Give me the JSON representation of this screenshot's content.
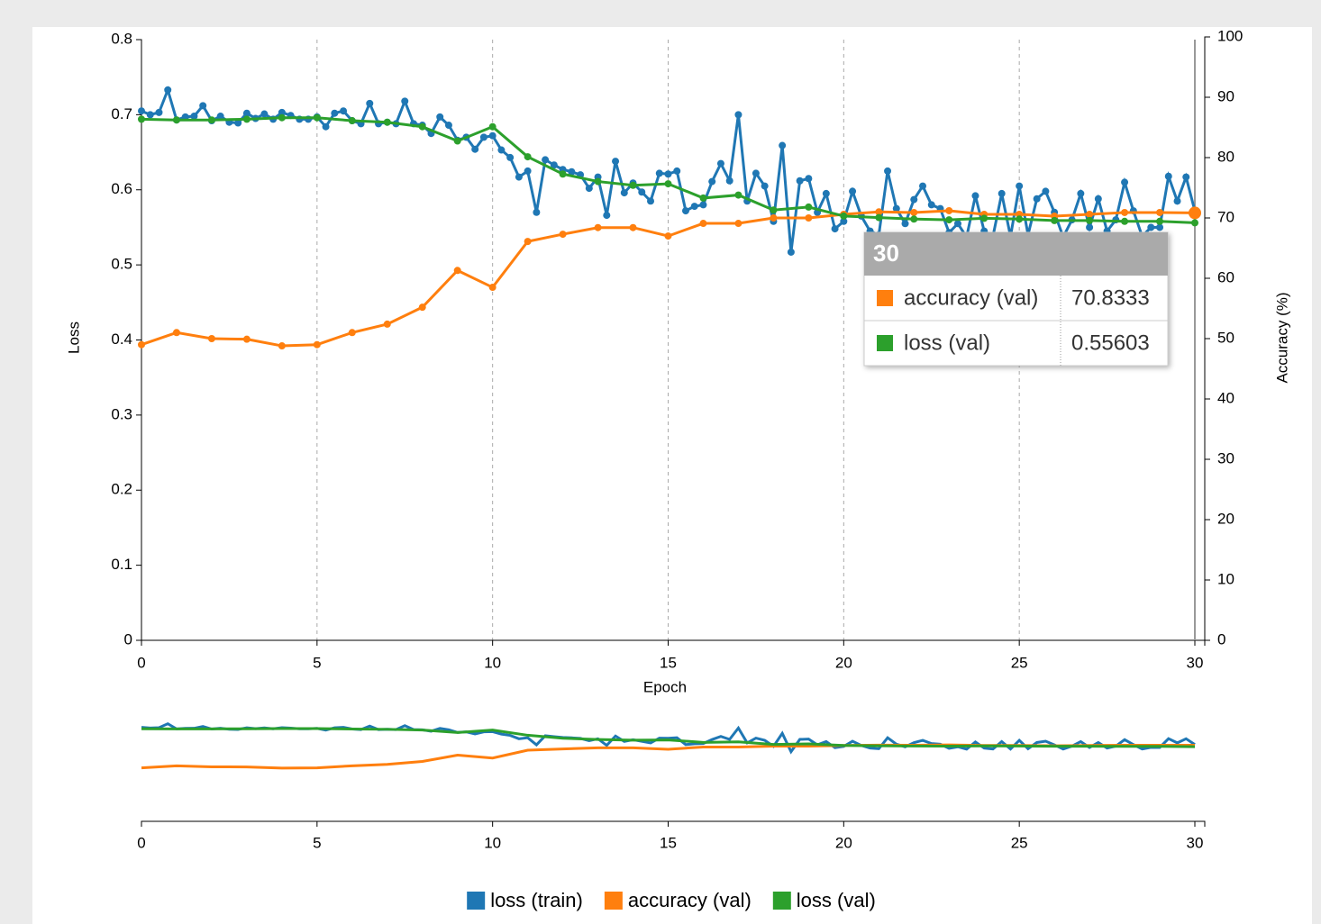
{
  "chart_data": {
    "type": "line",
    "xlabel": "Epoch",
    "ylabel": "Loss",
    "y2label": "Accuracy (%)",
    "xlim": [
      0,
      30
    ],
    "xticks": [
      0,
      5,
      10,
      15,
      20,
      25,
      30
    ],
    "ylim": [
      0,
      0.8
    ],
    "yticks": [
      0,
      0.1,
      0.2,
      0.3,
      0.4,
      0.5,
      0.6,
      0.7,
      0.8
    ],
    "y2lim": [
      0,
      100
    ],
    "y2ticks": [
      0,
      10,
      20,
      30,
      40,
      50,
      60,
      70,
      80,
      90,
      100
    ],
    "xgrid": true,
    "legend": "bottom",
    "series": [
      {
        "name": "loss (train)",
        "color": "#1f77b4",
        "axis": "y",
        "x": [
          0,
          0.25,
          0.5,
          0.75,
          1,
          1.25,
          1.5,
          1.75,
          2,
          2.25,
          2.5,
          2.75,
          3,
          3.25,
          3.5,
          3.75,
          4,
          4.25,
          4.5,
          4.75,
          5,
          5.25,
          5.5,
          5.75,
          6,
          6.25,
          6.5,
          6.75,
          7,
          7.25,
          7.5,
          7.75,
          8,
          8.25,
          8.5,
          8.75,
          9,
          9.25,
          9.5,
          9.75,
          10,
          10.25,
          10.5,
          10.75,
          11,
          11.25,
          11.5,
          11.75,
          12,
          12.25,
          12.5,
          12.75,
          13,
          13.25,
          13.5,
          13.75,
          14,
          14.25,
          14.5,
          14.75,
          15,
          15.25,
          15.5,
          15.75,
          16,
          16.25,
          16.5,
          16.75,
          17,
          17.25,
          17.5,
          17.75,
          18,
          18.25,
          18.5,
          18.75,
          19,
          19.25,
          19.5,
          19.75,
          20,
          20.25,
          20.5,
          20.75,
          21,
          21.25,
          21.5,
          21.75,
          22,
          22.25,
          22.5,
          22.75,
          23,
          23.25,
          23.5,
          23.75,
          24,
          24.25,
          24.5,
          24.75,
          25,
          25.25,
          25.5,
          25.75,
          26,
          26.25,
          26.5,
          26.75,
          27,
          27.25,
          27.5,
          27.75,
          28,
          28.25,
          28.5,
          28.75,
          29,
          29.25,
          29.5,
          29.75,
          30
        ],
        "values": [
          0.705,
          0.7,
          0.703,
          0.733,
          0.693,
          0.697,
          0.698,
          0.712,
          0.692,
          0.698,
          0.69,
          0.689,
          0.702,
          0.695,
          0.701,
          0.694,
          0.703,
          0.699,
          0.694,
          0.694,
          0.697,
          0.684,
          0.702,
          0.705,
          0.692,
          0.688,
          0.715,
          0.688,
          0.69,
          0.688,
          0.718,
          0.688,
          0.686,
          0.675,
          0.697,
          0.686,
          0.666,
          0.67,
          0.654,
          0.67,
          0.672,
          0.653,
          0.643,
          0.617,
          0.625,
          0.57,
          0.64,
          0.633,
          0.627,
          0.624,
          0.62,
          0.602,
          0.617,
          0.566,
          0.638,
          0.596,
          0.609,
          0.597,
          0.585,
          0.622,
          0.621,
          0.625,
          0.572,
          0.578,
          0.58,
          0.611,
          0.635,
          0.612,
          0.7,
          0.585,
          0.622,
          0.605,
          0.558,
          0.659,
          0.517,
          0.612,
          0.615,
          0.57,
          0.595,
          0.548,
          0.558,
          0.598,
          0.565,
          0.545,
          0.54,
          0.625,
          0.575,
          0.555,
          0.587,
          0.605,
          0.58,
          0.575,
          0.543,
          0.555,
          0.537,
          0.592,
          0.545,
          0.538,
          0.595,
          0.538,
          0.605,
          0.54,
          0.588,
          0.598,
          0.57,
          0.537,
          0.56,
          0.595,
          0.55,
          0.588,
          0.545,
          0.56,
          0.61,
          0.572,
          0.538,
          0.55,
          0.55,
          0.618,
          0.585,
          0.617,
          0.572
        ]
      },
      {
        "name": "accuracy (val)",
        "color": "#ff7f0e",
        "axis": "y2",
        "x": [
          0,
          1,
          2,
          3,
          4,
          5,
          6,
          7,
          8,
          9,
          10,
          11,
          12,
          13,
          14,
          15,
          16,
          17,
          18,
          19,
          20,
          21,
          22,
          23,
          24,
          25,
          26,
          27,
          28,
          29,
          30
        ],
        "values": [
          49.0,
          51.0,
          50.0,
          49.9,
          48.8,
          49.0,
          51.0,
          52.4,
          55.2,
          61.3,
          58.5,
          66.1,
          67.3,
          68.4,
          68.4,
          67.0,
          69.1,
          69.1,
          70.0,
          70.0,
          70.6,
          71.0,
          70.9,
          71.2,
          70.6,
          70.6,
          70.3,
          70.6,
          70.9,
          70.9,
          70.8333
        ]
      },
      {
        "name": "loss (val)",
        "color": "#2ca02c",
        "axis": "y",
        "x": [
          0,
          1,
          2,
          3,
          4,
          5,
          6,
          7,
          8,
          9,
          10,
          11,
          12,
          13,
          14,
          15,
          16,
          17,
          18,
          19,
          20,
          21,
          22,
          23,
          24,
          25,
          26,
          27,
          28,
          29,
          30
        ],
        "values": [
          0.694,
          0.693,
          0.693,
          0.694,
          0.696,
          0.696,
          0.692,
          0.69,
          0.684,
          0.665,
          0.684,
          0.644,
          0.621,
          0.611,
          0.606,
          0.608,
          0.589,
          0.593,
          0.573,
          0.577,
          0.565,
          0.563,
          0.561,
          0.56,
          0.562,
          0.561,
          0.559,
          0.559,
          0.558,
          0.558,
          0.55603
        ]
      }
    ]
  }
}
